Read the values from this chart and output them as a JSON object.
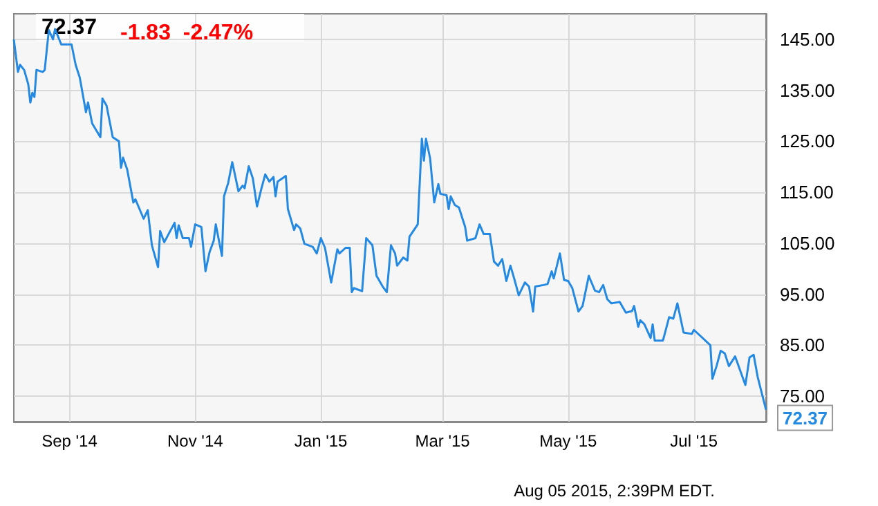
{
  "chart_data": {
    "type": "line",
    "title": "72.37",
    "subtitle": "-1.83  -2.47%",
    "annotations": [
      "Aug 05 2015, 2:39PM EDT."
    ],
    "x": [
      "2014-08-05",
      "2014-08-07",
      "2014-08-08",
      "2014-08-10",
      "2014-08-12",
      "2014-08-13",
      "2014-08-14",
      "2014-08-15",
      "2014-08-16",
      "2014-08-19",
      "2014-08-20",
      "2014-08-21",
      "2014-08-22",
      "2014-08-24",
      "2014-08-25",
      "2014-08-28",
      "2014-09-02",
      "2014-09-04",
      "2014-09-06",
      "2014-09-09",
      "2014-09-10",
      "2014-09-12",
      "2014-09-16",
      "2014-09-17",
      "2014-09-19",
      "2014-09-22",
      "2014-09-25",
      "2014-09-26",
      "2014-09-27",
      "2014-09-29",
      "2014-10-02",
      "2014-10-03",
      "2014-10-07",
      "2014-10-09",
      "2014-10-11",
      "2014-10-14",
      "2014-10-15",
      "2014-10-17",
      "2014-10-22",
      "2014-10-23",
      "2014-10-24",
      "2014-10-26",
      "2014-10-29",
      "2014-10-30",
      "2014-11-01",
      "2014-11-04",
      "2014-11-06",
      "2014-11-08",
      "2014-11-10",
      "2014-11-11",
      "2014-11-14",
      "2014-11-15",
      "2014-11-17",
      "2014-11-19",
      "2014-11-22",
      "2014-11-24",
      "2014-11-25",
      "2014-11-27",
      "2014-11-29",
      "2014-12-01",
      "2014-12-03",
      "2014-12-05",
      "2014-12-07",
      "2014-12-09",
      "2014-12-10",
      "2014-12-11",
      "2014-12-15",
      "2014-12-16",
      "2014-12-19",
      "2014-12-20",
      "2014-12-22",
      "2014-12-24",
      "2014-12-28",
      "2014-12-30",
      "2015-01-01",
      "2015-01-03",
      "2015-01-06",
      "2015-01-09",
      "2015-01-10",
      "2015-01-13",
      "2015-01-15",
      "2015-01-16",
      "2015-01-17",
      "2015-01-21",
      "2015-01-23",
      "2015-01-26",
      "2015-01-28",
      "2015-01-31",
      "2015-02-02",
      "2015-02-04",
      "2015-02-06",
      "2015-02-07",
      "2015-02-10",
      "2015-02-12",
      "2015-02-13",
      "2015-02-17",
      "2015-02-19",
      "2015-02-20",
      "2015-02-21",
      "2015-02-23",
      "2015-02-25",
      "2015-02-27",
      "2015-02-28",
      "2015-03-03",
      "2015-03-04",
      "2015-03-05",
      "2015-03-07",
      "2015-03-09",
      "2015-03-12",
      "2015-03-13",
      "2015-03-17",
      "2015-03-19",
      "2015-03-21",
      "2015-03-24",
      "2015-03-26",
      "2015-03-28",
      "2015-03-30",
      "2015-04-01",
      "2015-04-03",
      "2015-04-05",
      "2015-04-07",
      "2015-04-10",
      "2015-04-12",
      "2015-04-14",
      "2015-04-15",
      "2015-04-19",
      "2015-04-21",
      "2015-04-23",
      "2015-04-24",
      "2015-04-27",
      "2015-04-29",
      "2015-05-01",
      "2015-05-03",
      "2015-05-06",
      "2015-05-08",
      "2015-05-11",
      "2015-05-14",
      "2015-05-16",
      "2015-05-18",
      "2015-05-20",
      "2015-05-22",
      "2015-05-26",
      "2015-05-29",
      "2015-06-01",
      "2015-06-02",
      "2015-06-04",
      "2015-06-05",
      "2015-06-07",
      "2015-06-10",
      "2015-06-11",
      "2015-06-12",
      "2015-06-16",
      "2015-06-19",
      "2015-06-21",
      "2015-06-23",
      "2015-06-26",
      "2015-06-30",
      "2015-07-01",
      "2015-07-09",
      "2015-07-10",
      "2015-07-12",
      "2015-07-14",
      "2015-07-16",
      "2015-07-18",
      "2015-07-21",
      "2015-07-26",
      "2015-07-28",
      "2015-07-30",
      "2015-08-01",
      "2015-08-05"
    ],
    "series": [
      {
        "color": "#2389e2",
        "values": [
          145,
          138.6,
          140,
          139,
          136.2,
          132.6,
          134.5,
          133.7,
          139,
          138.6,
          139,
          143,
          146.8,
          145,
          147,
          144,
          144,
          140,
          137.5,
          130.7,
          132.6,
          128.5,
          125.8,
          133.4,
          132,
          125.8,
          125,
          119.8,
          121.8,
          119.5,
          113,
          113.6,
          109.8,
          111.5,
          104.6,
          100.3,
          107.4,
          105.2,
          109,
          106,
          108.5,
          106,
          106,
          104.3,
          108.7,
          108.2,
          99.5,
          103.3,
          105.5,
          108.7,
          102.5,
          114.2,
          116.8,
          120.9,
          115.2,
          116.3,
          115.8,
          120.1,
          117.7,
          112.2,
          115.5,
          118.5,
          117.1,
          118,
          114.2,
          117.1,
          118.2,
          111.7,
          107.6,
          108.7,
          107.9,
          104.9,
          104.3,
          103,
          106,
          104.1,
          97.3,
          103.8,
          103,
          104.1,
          104.1,
          95.4,
          96.2,
          95.6,
          106,
          104.6,
          98.6,
          96.5,
          95.4,
          104.6,
          103,
          100.6,
          102.2,
          101.6,
          106.3,
          108.7,
          125.5,
          121.2,
          125.5,
          121.7,
          113,
          116.6,
          114.7,
          114.4,
          111.7,
          114.2,
          112.5,
          112,
          108.2,
          105.5,
          106,
          108.7,
          106.8,
          106.8,
          101.4,
          100.6,
          101.9,
          97.6,
          100.6,
          97.8,
          94.8,
          97.3,
          96.5,
          91.6,
          96.5,
          96.8,
          97,
          99.5,
          98.1,
          103,
          97.8,
          97.6,
          96.2,
          91.6,
          92.7,
          98.6,
          95.7,
          95.4,
          96.8,
          94,
          93.2,
          93.5,
          91.4,
          91.7,
          92.7,
          88.6,
          89.9,
          89.1,
          86.4,
          89.1,
          85.9,
          85.9,
          90.5,
          90.2,
          93.2,
          87.5,
          87.2,
          88,
          85,
          78.4,
          80.9,
          83.9,
          83.4,
          80.9,
          82.8,
          77.2,
          82.6,
          83.1,
          78.7,
          72.37
        ],
        "value_labels": [
          null,
          null,
          null,
          null,
          null,
          null,
          null,
          null,
          null,
          null,
          null,
          null,
          null,
          null,
          null,
          null,
          null,
          null,
          null,
          null,
          null,
          null,
          null,
          null,
          null,
          null,
          null,
          null,
          null,
          null,
          null,
          null,
          null,
          null,
          null,
          null,
          null,
          null,
          null,
          null,
          null,
          null,
          null,
          null,
          null,
          null,
          null,
          null,
          null,
          null,
          null,
          null,
          null,
          null,
          null,
          null,
          null,
          null,
          null,
          null,
          null,
          null,
          null,
          null,
          null,
          null,
          null,
          null,
          null,
          null,
          null,
          null,
          null,
          null,
          null,
          null,
          null,
          null,
          null,
          null,
          null,
          null,
          null,
          null,
          null,
          null,
          null,
          null,
          null,
          null,
          null,
          null,
          null,
          null,
          null,
          null,
          null,
          null,
          null,
          null,
          null,
          null,
          null,
          null,
          null,
          null,
          null,
          null,
          null,
          null,
          null,
          null,
          null,
          null,
          null,
          null,
          null,
          null,
          null,
          null,
          null,
          null,
          null,
          null,
          null,
          null,
          null,
          null,
          null,
          null,
          null,
          null,
          null,
          null,
          null,
          null,
          null,
          null,
          null,
          null,
          null,
          null,
          null,
          null,
          null,
          null,
          null,
          null,
          null,
          null,
          null,
          null,
          null,
          null,
          null,
          null,
          null,
          null,
          null,
          null,
          null,
          null,
          null,
          null,
          null,
          null,
          null,
          null,
          null,
          "72.37"
        ]
      }
    ],
    "xlim": [
      "2014-08-05",
      "2015-08-05"
    ],
    "xticks": [
      {
        "value": "2014-09-01",
        "label": "Sep '14"
      },
      {
        "value": "2014-11-01",
        "label": "Nov '14"
      },
      {
        "value": "2015-01-01",
        "label": "Jan '15"
      },
      {
        "value": "2015-03-01",
        "label": "Mar '15"
      },
      {
        "value": "2015-05-01",
        "label": "May '15"
      },
      {
        "value": "2015-07-01",
        "label": "Jul '15"
      }
    ],
    "ylim": [
      70,
      150
    ],
    "yticks": [
      {
        "value": 75,
        "label": "75.00"
      },
      {
        "value": 85,
        "label": "85.00"
      },
      {
        "value": 95,
        "label": "95.00"
      },
      {
        "value": 105,
        "label": "105.00"
      },
      {
        "value": 115,
        "label": "115.00"
      },
      {
        "value": 125,
        "label": "125.00"
      },
      {
        "value": 135,
        "label": "135.00"
      },
      {
        "value": 145,
        "label": "145.00"
      }
    ],
    "grid": true,
    "marker": "none",
    "line_style": "solid"
  }
}
